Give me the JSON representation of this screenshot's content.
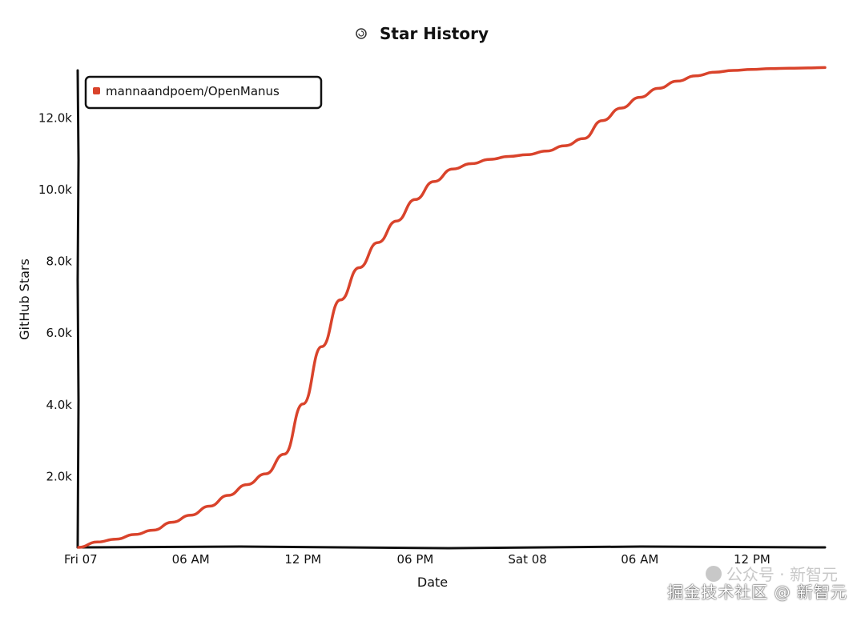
{
  "chart_data": {
    "type": "line",
    "title": "Star History",
    "xlabel": "Date",
    "ylabel": "GitHub Stars",
    "x_tick_labels": [
      "Fri 07",
      "06 AM",
      "12 PM",
      "06 PM",
      "Sat 08",
      "06 AM",
      "12 PM"
    ],
    "x_range_hours": [
      0,
      39.9
    ],
    "y_tick_values": [
      2000,
      4000,
      6000,
      8000,
      10000,
      12000
    ],
    "y_tick_labels": [
      "2.0k",
      "4.0k",
      "6.0k",
      "8.0k",
      "10.0k",
      "12.0k"
    ],
    "ylim": [
      0,
      13300
    ],
    "grid": false,
    "legend_position": "top-left",
    "series": [
      {
        "name": "mannaandpoem/OpenManus",
        "color": "#d9432b",
        "x_hours": [
          0,
          1,
          2,
          3,
          4,
          5,
          6,
          7,
          8,
          9,
          10,
          11,
          12,
          13,
          14,
          15,
          16,
          17,
          18,
          19,
          20,
          21,
          22,
          23,
          24,
          25,
          26,
          27,
          28,
          29,
          30,
          31,
          32,
          33,
          34,
          35,
          36,
          37,
          38,
          39,
          39.9
        ],
        "y_values": [
          0,
          150,
          230,
          360,
          480,
          700,
          900,
          1150,
          1450,
          1750,
          2050,
          2600,
          4000,
          5600,
          6900,
          7800,
          8500,
          9100,
          9700,
          10200,
          10550,
          10700,
          10820,
          10900,
          10950,
          11050,
          11200,
          11400,
          11900,
          12250,
          12550,
          12800,
          13000,
          13150,
          13250,
          13300,
          13330,
          13350,
          13360,
          13370,
          13380
        ]
      }
    ]
  },
  "watermark": {
    "line1": "公众号 · 新智元",
    "line2": "掘金技术社区 @ 新智元"
  }
}
